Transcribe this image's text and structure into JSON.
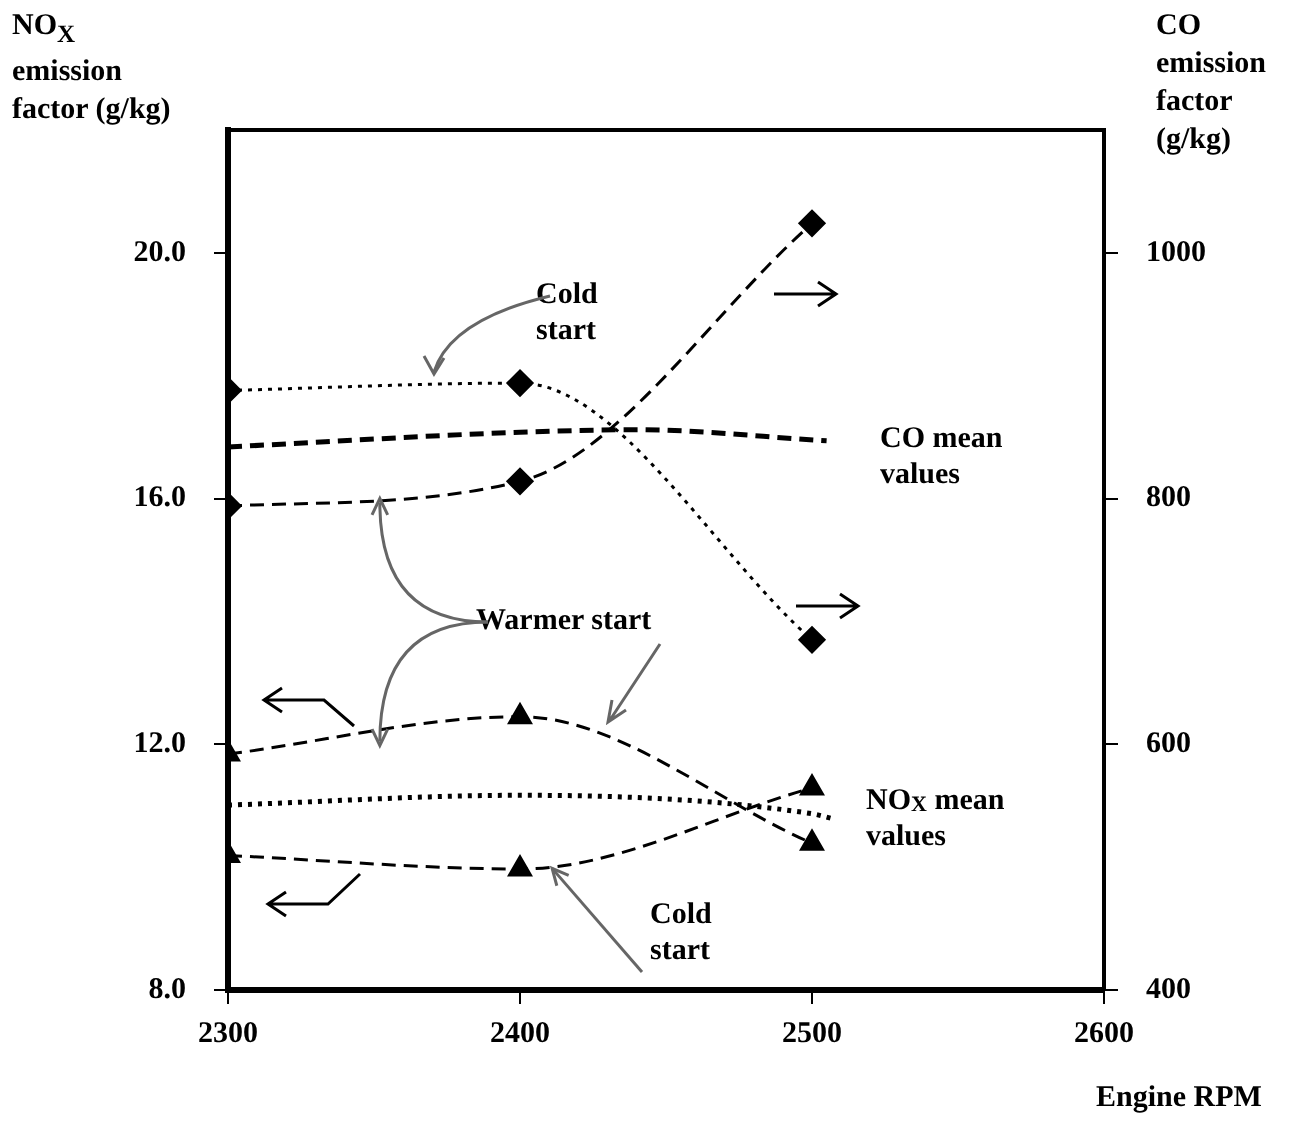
{
  "chart_data": {
    "type": "line",
    "xlabel": "Engine RPM",
    "ylabel": "NO$_{X}$ emission factor (g/kg)",
    "y2label": "CO emission factor (g/kg)",
    "xlim": [
      2300,
      2600
    ],
    "xticks": [
      2300,
      2400,
      2500,
      2600
    ],
    "ylim": [
      8,
      22
    ],
    "yticks": [
      {
        "value": 8,
        "label": "8.0"
      },
      {
        "value": 12,
        "label": "12.0"
      },
      {
        "value": 16,
        "label": "16.0"
      },
      {
        "value": 20,
        "label": "20.0"
      }
    ],
    "y2lim": [
      400,
      1100
    ],
    "y2ticks": [
      400,
      600,
      800,
      1000
    ],
    "annotations": [
      "Cold start",
      "CO mean values",
      {
        "text": "Warmer start",
        "x": 2352,
        "y": 16.0
      },
      "NO$_{X}$ mean values",
      {
        "text": "Cold start",
        "x": 2411,
        "y": 9.98
      }
    ],
    "series": [
      {
        "color": "#000000",
        "axis": "y2",
        "marker": "diamond",
        "line_style": "dotted",
        "x": [
          2300,
          2400,
          2500
        ],
        "values": [
          888,
          894,
          685
        ]
      },
      {
        "color": "#000000",
        "axis": "y2",
        "marker": "diamond",
        "line_style": "dashed",
        "x": [
          2300,
          2400,
          2500
        ],
        "values": [
          794,
          814,
          1024
        ]
      },
      {
        "color": "#000000",
        "axis": "y2",
        "marker": "none",
        "line_style": "dashed",
        "x": [
          2300,
          2400,
          2440,
          2505
        ],
        "values": [
          842,
          854,
          856,
          847
        ]
      },
      {
        "color": "#000000",
        "axis": "y",
        "marker": "triangle",
        "line_style": "dashed",
        "x": [
          2300,
          2400,
          2500
        ],
        "values": [
          11.84,
          12.45,
          10.39
        ]
      },
      {
        "color": "#000000",
        "axis": "y",
        "marker": "triangle",
        "line_style": "dashed",
        "x": [
          2300,
          2400,
          2500
        ],
        "values": [
          10.19,
          9.97,
          11.29
        ]
      },
      {
        "color": "#000000",
        "axis": "y",
        "marker": "none",
        "line_style": "dotted",
        "x": [
          2300,
          2400,
          2500,
          2507
        ],
        "values": [
          11.01,
          11.17,
          10.87,
          10.79
        ]
      }
    ]
  }
}
